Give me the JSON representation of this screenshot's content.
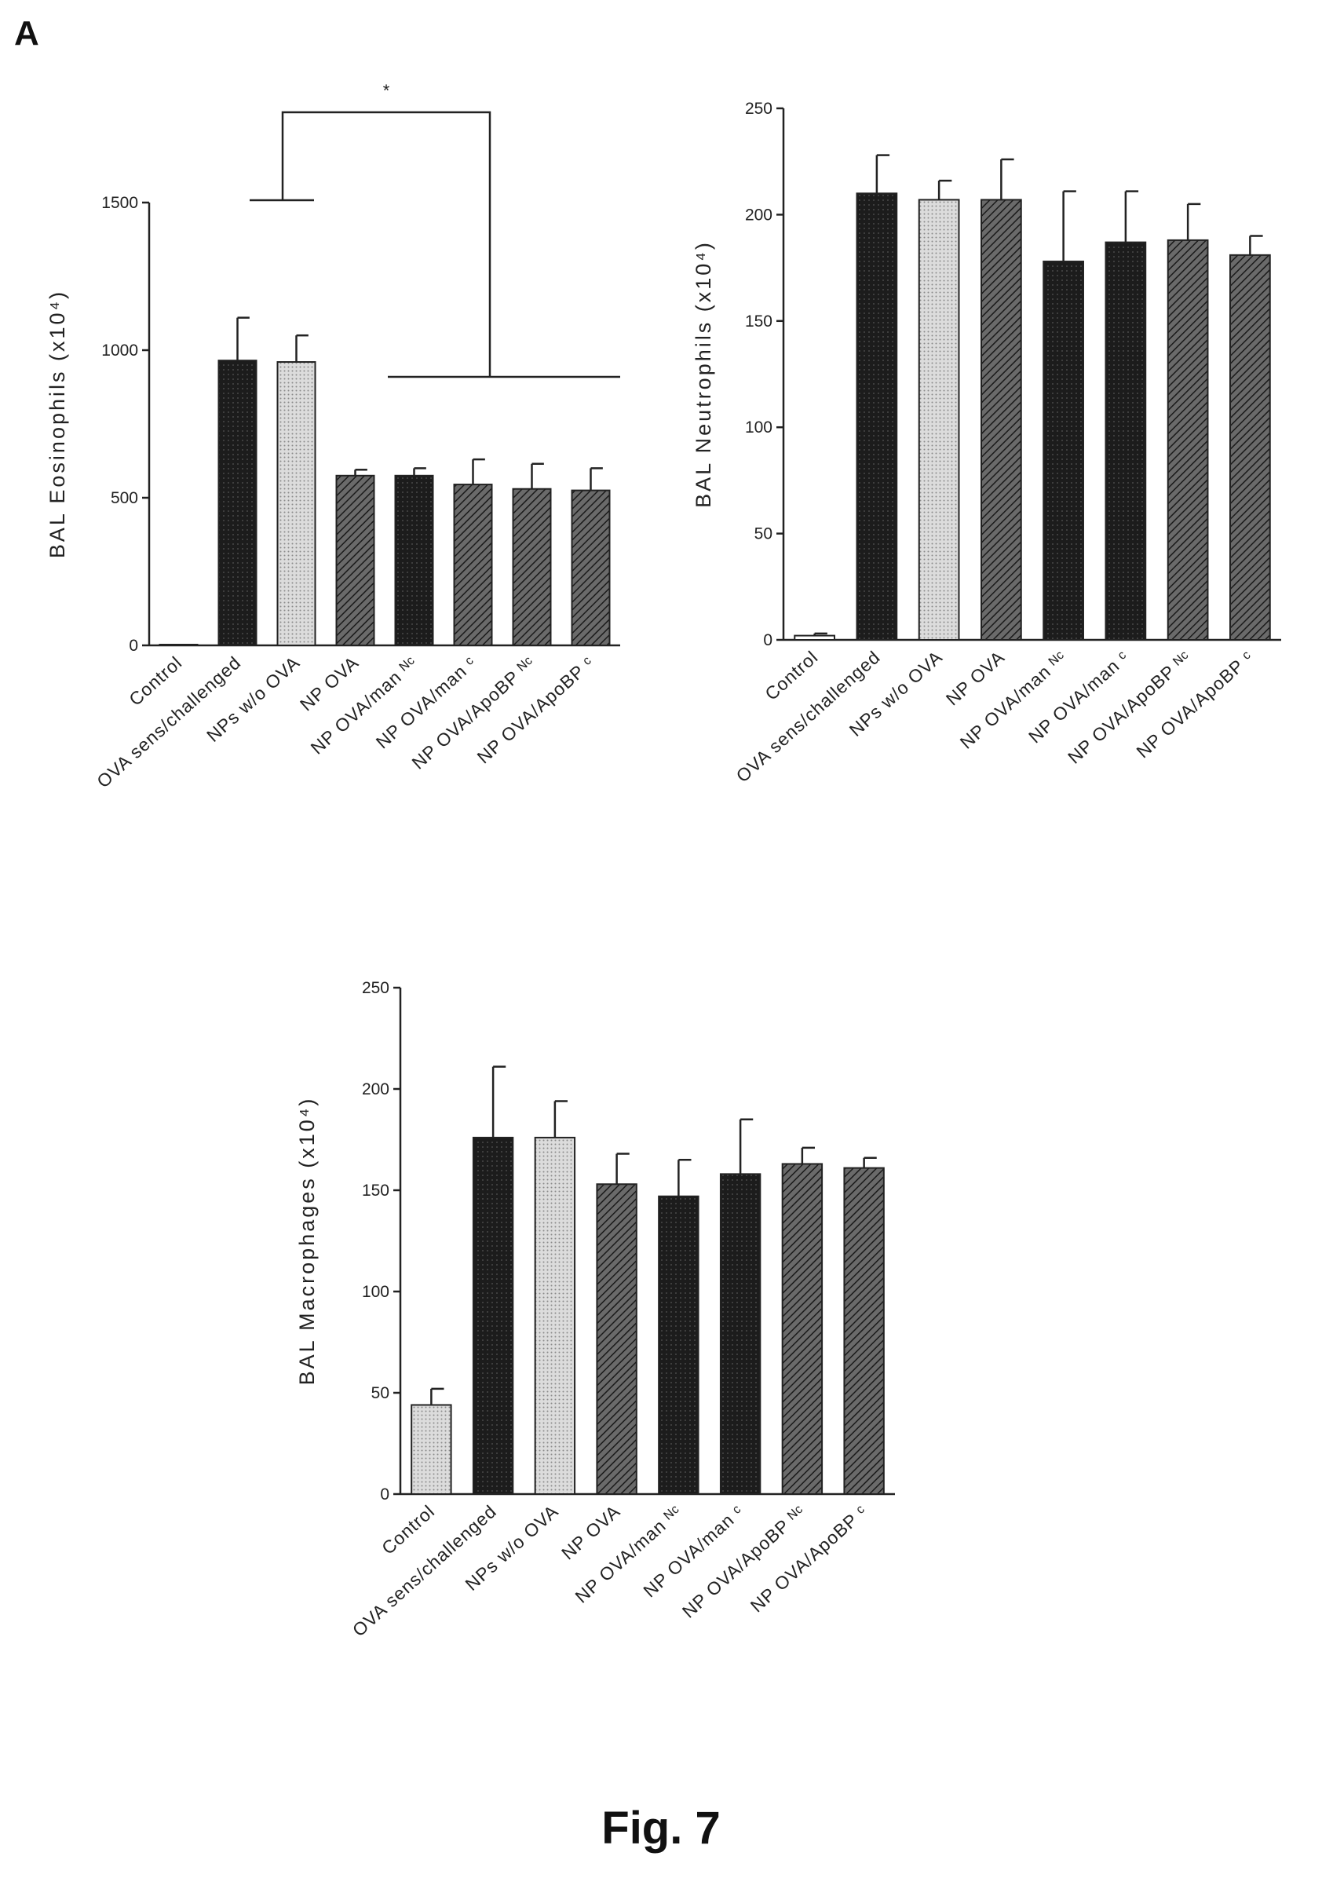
{
  "panel_letter": "A",
  "figure_caption": "Fig. 7",
  "chart_data": [
    {
      "type": "bar",
      "ylabel": "BAL Eosinophils (x10⁴)",
      "ylim": [
        0,
        1500
      ],
      "yticks": [
        0,
        500,
        1000,
        1500
      ],
      "categories": [
        "Control",
        "OVA sens/challenged",
        "NPs w/o OVA",
        "NP OVA",
        "NP OVA/man ᴺᶜ",
        "NP OVA/man ᶜ",
        "NP OVA/ApoBP ᴺᶜ",
        "NP OVA/ApoBP ᶜ"
      ],
      "values": [
        0,
        965,
        960,
        575,
        575,
        545,
        530,
        525
      ],
      "errors": [
        0,
        145,
        90,
        20,
        25,
        85,
        85,
        75
      ],
      "fills": [
        "white",
        "dark",
        "light",
        "hatch",
        "dark",
        "hatch",
        "hatch",
        "hatch"
      ],
      "significance": "*"
    },
    {
      "type": "bar",
      "ylabel": "BAL Neutrophils (x10⁴)",
      "ylim": [
        0,
        250
      ],
      "yticks": [
        0,
        50,
        100,
        150,
        200,
        250
      ],
      "categories": [
        "Control",
        "OVA sens/challenged",
        "NPs w/o OVA",
        "NP OVA",
        "NP OVA/man ᴺᶜ",
        "NP OVA/man ᶜ",
        "NP OVA/ApoBP ᴺᶜ",
        "NP OVA/ApoBP ᶜ"
      ],
      "values": [
        2,
        210,
        207,
        207,
        178,
        187,
        188,
        181
      ],
      "errors": [
        1,
        18,
        9,
        19,
        33,
        24,
        17,
        9
      ],
      "fills": [
        "white",
        "dark",
        "light",
        "hatch",
        "dark",
        "dark",
        "hatch",
        "hatch"
      ]
    },
    {
      "type": "bar",
      "ylabel": "BAL Macrophages (x10⁴)",
      "ylim": [
        0,
        250
      ],
      "yticks": [
        0,
        50,
        100,
        150,
        200,
        250
      ],
      "categories": [
        "Control",
        "OVA sens/challenged",
        "NPs w/o OVA",
        "NP OVA",
        "NP OVA/man ᴺᶜ",
        "NP OVA/man ᶜ",
        "NP OVA/ApoBP ᴺᶜ",
        "NP OVA/ApoBP ᶜ"
      ],
      "values": [
        44,
        176,
        176,
        153,
        147,
        158,
        163,
        161
      ],
      "errors": [
        8,
        35,
        18,
        15,
        18,
        27,
        8,
        5
      ],
      "fills": [
        "light",
        "dark",
        "light",
        "hatch",
        "dark",
        "dark",
        "hatch",
        "hatch"
      ]
    }
  ]
}
